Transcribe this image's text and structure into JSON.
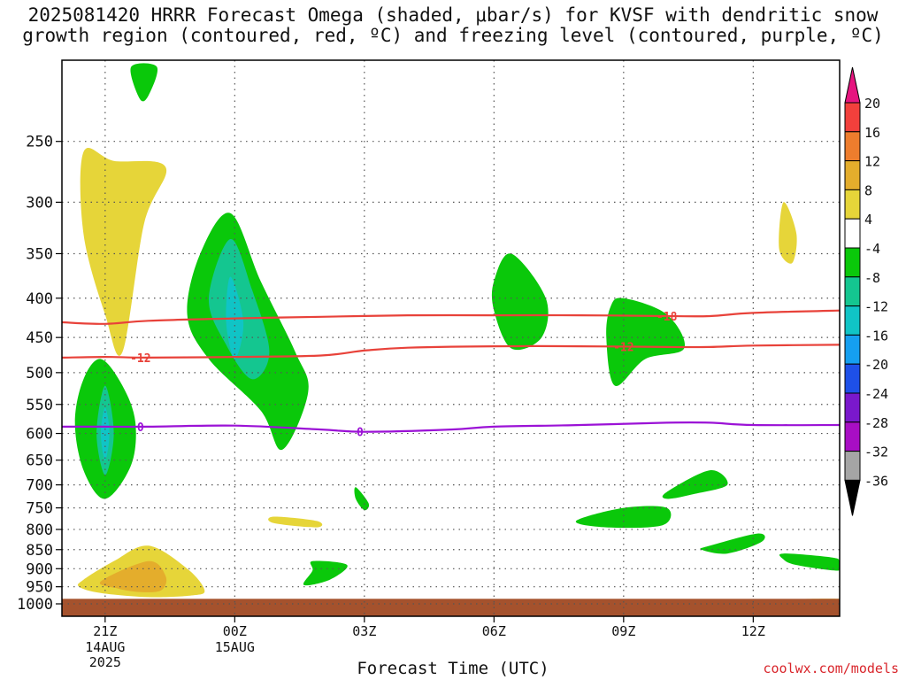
{
  "title": "2025081420 HRRR Forecast Omega (shaded, μbar/s) for KVSF with dendritic snow\ngrowth region (contoured, red, ºC) and freezing level (contoured, purple, ºC)",
  "credit": "coolwx.com/models",
  "chart_data": {
    "type": "heatmap",
    "title": "2025081420 HRRR Forecast Omega (shaded, μbar/s) for KVSF with dendritic snow growth region (contoured, red, ºC) and freezing level (contoured, purple, ºC)",
    "xlabel": "Forecast Time (UTC)",
    "ylabel": "",
    "y_scale": "log (pressure, hPa, increasing downward)",
    "ylim": [
      1000,
      200
    ],
    "xlim_hours": [
      20,
      38
    ],
    "grid": true,
    "x_ticks": [
      {
        "hour": 21,
        "label": "21Z",
        "sub": [
          "14AUG",
          "2025"
        ]
      },
      {
        "hour": 24,
        "label": "00Z",
        "sub": [
          "15AUG"
        ]
      },
      {
        "hour": 27,
        "label": "03Z",
        "sub": []
      },
      {
        "hour": 30,
        "label": "06Z",
        "sub": []
      },
      {
        "hour": 33,
        "label": "09Z",
        "sub": []
      },
      {
        "hour": 36,
        "label": "12Z",
        "sub": []
      }
    ],
    "y_ticks": [
      250,
      300,
      350,
      400,
      450,
      500,
      550,
      600,
      650,
      700,
      750,
      800,
      850,
      900,
      950,
      1000
    ],
    "colorbar": {
      "labels": [
        "20",
        "16",
        "12",
        "8",
        "4",
        "-4",
        "-8",
        "-12",
        "-16",
        "-20",
        "-24",
        "-28",
        "-32",
        "-36"
      ],
      "colors": [
        "#f2403c",
        "#ee7d2d",
        "#e4ad2c",
        "#e6d539",
        "#ffffff",
        "#0ac80a",
        "#14c690",
        "#10c4c6",
        "#159ff0",
        "#1e50e8",
        "#7a18cc",
        "#a80ec4",
        "#a5a5a5"
      ],
      "top_arrow_color": "#e6157f",
      "bottom_arrow_color": "#000000"
    },
    "omega_regions": [
      {
        "name": "omega-pos-4-8",
        "color": "#e6d539",
        "points": [
          [
            20.5,
            258
          ],
          [
            21.2,
            265
          ],
          [
            22.4,
            270
          ],
          [
            21.9,
            320
          ],
          [
            21.4,
            470
          ],
          [
            21.0,
            420
          ],
          [
            20.5,
            330
          ]
        ]
      },
      {
        "name": "omega-neg-4-8",
        "color": "#0ac80a",
        "points": [
          [
            21.6,
            200
          ],
          [
            22.2,
            200
          ],
          [
            22.0,
            218
          ],
          [
            21.8,
            220
          ]
        ]
      },
      {
        "name": "omega-neg-4-8",
        "color": "#0ac80a",
        "points": [
          [
            23.9,
            310
          ],
          [
            24.6,
            380
          ],
          [
            25.4,
            470
          ],
          [
            25.7,
            530
          ],
          [
            25.1,
            630
          ],
          [
            24.6,
            560
          ],
          [
            23.4,
            480
          ],
          [
            22.9,
            420
          ],
          [
            23.2,
            350
          ]
        ]
      },
      {
        "name": "omega-neg-8-12",
        "color": "#14c690",
        "points": [
          [
            23.9,
            335
          ],
          [
            24.4,
            390
          ],
          [
            24.8,
            470
          ],
          [
            24.4,
            510
          ],
          [
            23.8,
            460
          ],
          [
            23.4,
            400
          ]
        ]
      },
      {
        "name": "omega-neg-12-16",
        "color": "#10c4c6",
        "points": [
          [
            23.9,
            375
          ],
          [
            24.2,
            430
          ],
          [
            24.0,
            480
          ],
          [
            23.8,
            430
          ]
        ]
      },
      {
        "name": "omega-neg-4-8",
        "color": "#0ac80a",
        "points": [
          [
            20.9,
            480
          ],
          [
            21.4,
            520
          ],
          [
            21.7,
            580
          ],
          [
            21.6,
            660
          ],
          [
            21.0,
            730
          ],
          [
            20.5,
            670
          ],
          [
            20.3,
            580
          ],
          [
            20.5,
            510
          ]
        ]
      },
      {
        "name": "omega-neg-8-12",
        "color": "#14c690",
        "points": [
          [
            21.0,
            520
          ],
          [
            21.2,
            600
          ],
          [
            21.0,
            680
          ],
          [
            20.8,
            600
          ]
        ]
      },
      {
        "name": "omega-neg-12-16",
        "color": "#10c4c6",
        "points": [
          [
            21.0,
            555
          ],
          [
            21.1,
            600
          ],
          [
            21.0,
            650
          ],
          [
            20.9,
            600
          ]
        ]
      },
      {
        "name": "omega-pos-4-8",
        "color": "#e6d539",
        "points": [
          [
            20.5,
            930
          ],
          [
            21.2,
            880
          ],
          [
            22.0,
            840
          ],
          [
            22.9,
            900
          ],
          [
            23.3,
            960
          ],
          [
            23.0,
            975
          ],
          [
            22.0,
            980
          ],
          [
            20.9,
            968
          ],
          [
            20.4,
            950
          ]
        ]
      },
      {
        "name": "omega-pos-8-12",
        "color": "#e4ad2c",
        "points": [
          [
            20.9,
            935
          ],
          [
            22.0,
            880
          ],
          [
            22.4,
            920
          ],
          [
            22.3,
            960
          ],
          [
            21.8,
            965
          ],
          [
            21.3,
            955
          ]
        ]
      },
      {
        "name": "omega-pos-4-8",
        "color": "#e6d539",
        "points": [
          [
            24.9,
            770
          ],
          [
            25.9,
            780
          ],
          [
            25.9,
            795
          ],
          [
            24.9,
            785
          ]
        ]
      },
      {
        "name": "omega-neg-4-8",
        "color": "#0ac80a",
        "points": [
          [
            25.8,
            880
          ],
          [
            26.6,
            890
          ],
          [
            26.2,
            930
          ],
          [
            25.6,
            945
          ],
          [
            25.8,
            905
          ]
        ]
      },
      {
        "name": "omega-neg-4-8",
        "color": "#0ac80a",
        "points": [
          [
            26.8,
            705
          ],
          [
            27.1,
            740
          ],
          [
            27.0,
            755
          ],
          [
            26.8,
            730
          ]
        ]
      },
      {
        "name": "omega-neg-4-8",
        "color": "#0ac80a",
        "points": [
          [
            30.4,
            350
          ],
          [
            31.2,
            400
          ],
          [
            31.1,
            450
          ],
          [
            30.4,
            465
          ],
          [
            30.0,
            415
          ],
          [
            30.0,
            380
          ]
        ]
      },
      {
        "name": "omega-neg-4-8",
        "color": "#0ac80a",
        "points": [
          [
            33.0,
            400
          ],
          [
            34.0,
            420
          ],
          [
            34.4,
            465
          ],
          [
            33.5,
            480
          ],
          [
            32.8,
            520
          ],
          [
            32.6,
            450
          ],
          [
            32.7,
            410
          ]
        ]
      },
      {
        "name": "omega-neg-4-8",
        "color": "#0ac80a",
        "points": [
          [
            35.0,
            670
          ],
          [
            35.4,
            700
          ],
          [
            34.6,
            720
          ],
          [
            34.0,
            730
          ],
          [
            34.0,
            715
          ]
        ]
      },
      {
        "name": "omega-neg-4-8",
        "color": "#0ac80a",
        "points": [
          [
            33.0,
            750
          ],
          [
            34.0,
            750
          ],
          [
            33.9,
            790
          ],
          [
            32.6,
            795
          ],
          [
            31.9,
            780
          ]
        ]
      },
      {
        "name": "omega-neg-4-8",
        "color": "#0ac80a",
        "points": [
          [
            35.0,
            840
          ],
          [
            36.1,
            810
          ],
          [
            36.2,
            830
          ],
          [
            35.4,
            860
          ],
          [
            34.8,
            850
          ]
        ]
      },
      {
        "name": "omega-pos-4-8",
        "color": "#e6d539",
        "points": [
          [
            36.7,
            300
          ],
          [
            37.0,
            330
          ],
          [
            36.9,
            360
          ],
          [
            36.6,
            345
          ]
        ]
      },
      {
        "name": "omega-neg-4-8",
        "color": "#0ac80a",
        "points": [
          [
            36.7,
            860
          ],
          [
            37.8,
            870
          ],
          [
            38,
            880
          ],
          [
            38,
            905
          ],
          [
            37.0,
            890
          ],
          [
            36.7,
            875
          ]
        ]
      },
      {
        "name": "omega-pos-4-8",
        "color": "#e6d539",
        "points": [
          [
            36.9,
            987
          ],
          [
            38,
            985
          ],
          [
            38,
            995
          ],
          [
            36.9,
            997
          ]
        ]
      }
    ],
    "contours": [
      {
        "name": "-18",
        "color": "#e8423a",
        "kind": "dendritic snow growth",
        "label_hour": 34.0,
        "points": [
          [
            20,
            430
          ],
          [
            21,
            432
          ],
          [
            22,
            428
          ],
          [
            24,
            425
          ],
          [
            26,
            423
          ],
          [
            28,
            421
          ],
          [
            30,
            421
          ],
          [
            32,
            421
          ],
          [
            34,
            422
          ],
          [
            35,
            422
          ],
          [
            36,
            418
          ],
          [
            38,
            415
          ]
        ]
      },
      {
        "name": "-12",
        "color": "#e8423a",
        "kind": "dendritic snow growth",
        "label_hour": 21.0,
        "points": [
          [
            20,
            478
          ],
          [
            21,
            477
          ],
          [
            22,
            478
          ],
          [
            24,
            477
          ],
          [
            26,
            475
          ],
          [
            27,
            468
          ],
          [
            28,
            464
          ],
          [
            30,
            462
          ],
          [
            32,
            462
          ],
          [
            34,
            463
          ],
          [
            35,
            463
          ],
          [
            36,
            461
          ],
          [
            38,
            460
          ]
        ]
      },
      {
        "name": "0",
        "color": "#9b12d6",
        "kind": "freezing level",
        "label_hour": 21.0,
        "points": [
          [
            20,
            588
          ],
          [
            21,
            588
          ],
          [
            22,
            588
          ],
          [
            24,
            586
          ],
          [
            26,
            593
          ],
          [
            27,
            597
          ],
          [
            29,
            593
          ],
          [
            30,
            588
          ],
          [
            32,
            585
          ],
          [
            34,
            581
          ],
          [
            35,
            581
          ],
          [
            36,
            585
          ],
          [
            38,
            585
          ]
        ]
      }
    ],
    "contour_label_hours": {
      "0": [
        21.0,
        26.9
      ],
      "-12": [
        21.0,
        33.0
      ],
      "-18": [
        34.0
      ]
    },
    "terrain": {
      "color": "#a5522d",
      "top_hpa": 985
    }
  }
}
